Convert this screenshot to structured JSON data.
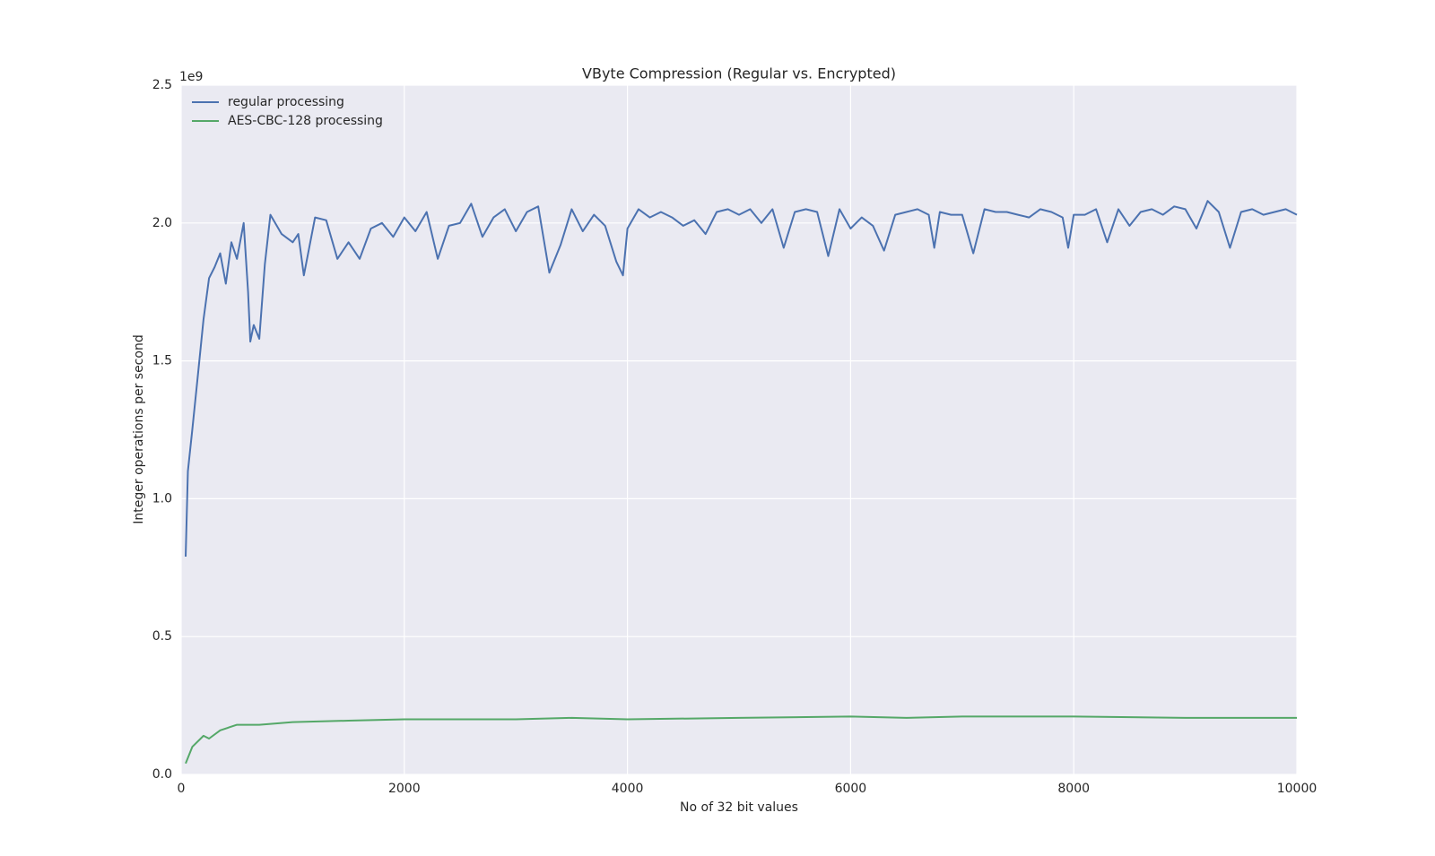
{
  "chart_data": {
    "type": "line",
    "title": "VByte Compression (Regular vs. Encrypted)",
    "x_label": "No of 32 bit values",
    "y_label": "Integer operations per second",
    "y_offset_label": "1e9",
    "xlim": [
      0,
      10000
    ],
    "ylim": [
      0,
      2.5
    ],
    "xticks": [
      0,
      2000,
      4000,
      6000,
      8000,
      10000
    ],
    "yticks": [
      {
        "value": 0,
        "label": "0.0"
      },
      0.5,
      {
        "value": 1,
        "label": "1.0"
      },
      1.5,
      {
        "value": 2,
        "label": "2.0"
      },
      2.5
    ],
    "grid": true,
    "legend": "upper left",
    "series": [
      {
        "name": "regular processing",
        "color": "#4c72b0",
        "x": [
          40,
          60,
          100,
          150,
          200,
          250,
          300,
          350,
          400,
          450,
          500,
          560,
          600,
          620,
          650,
          700,
          750,
          800,
          900,
          1000,
          1050,
          1100,
          1200,
          1300,
          1400,
          1500,
          1600,
          1700,
          1800,
          1900,
          2000,
          2100,
          2200,
          2300,
          2400,
          2500,
          2600,
          2700,
          2800,
          2900,
          3000,
          3100,
          3200,
          3300,
          3400,
          3500,
          3600,
          3700,
          3800,
          3900,
          3960,
          4000,
          4100,
          4200,
          4300,
          4400,
          4500,
          4600,
          4700,
          4800,
          4900,
          5000,
          5100,
          5200,
          5300,
          5400,
          5500,
          5600,
          5700,
          5800,
          5900,
          6000,
          6100,
          6200,
          6300,
          6400,
          6500,
          6600,
          6700,
          6750,
          6800,
          6900,
          7000,
          7100,
          7200,
          7300,
          7400,
          7500,
          7600,
          7700,
          7800,
          7900,
          7950,
          8000,
          8100,
          8200,
          8300,
          8400,
          8500,
          8600,
          8700,
          8800,
          8900,
          9000,
          9100,
          9200,
          9300,
          9400,
          9500,
          9600,
          9700,
          9800,
          9900,
          10000
        ],
        "values": [
          0.79,
          1.1,
          1.25,
          1.45,
          1.65,
          1.8,
          1.84,
          1.89,
          1.78,
          1.93,
          1.87,
          2.0,
          1.75,
          1.57,
          1.63,
          1.58,
          1.85,
          2.03,
          1.96,
          1.93,
          1.96,
          1.81,
          2.02,
          2.01,
          1.87,
          1.93,
          1.87,
          1.98,
          2.0,
          1.95,
          2.02,
          1.97,
          2.04,
          1.87,
          1.99,
          2.0,
          2.07,
          1.95,
          2.02,
          2.05,
          1.97,
          2.04,
          2.06,
          1.82,
          1.92,
          2.05,
          1.97,
          2.03,
          1.99,
          1.86,
          1.81,
          1.98,
          2.05,
          2.02,
          2.04,
          2.02,
          1.99,
          2.01,
          1.96,
          2.04,
          2.05,
          2.03,
          2.05,
          2.0,
          2.05,
          1.91,
          2.04,
          2.05,
          2.04,
          1.88,
          2.05,
          1.98,
          2.02,
          1.99,
          1.9,
          2.03,
          2.04,
          2.05,
          2.03,
          1.91,
          2.04,
          2.03,
          2.03,
          1.89,
          2.05,
          2.04,
          2.04,
          2.03,
          2.02,
          2.05,
          2.04,
          2.02,
          1.91,
          2.03,
          2.03,
          2.05,
          1.93,
          2.05,
          1.99,
          2.04,
          2.05,
          2.03,
          2.06,
          2.05,
          1.98,
          2.08,
          2.04,
          1.91,
          2.04,
          2.05,
          2.03,
          2.04,
          2.05,
          2.03
        ]
      },
      {
        "name": "AES-CBC-128 processing",
        "color": "#55a868",
        "x": [
          40,
          100,
          200,
          250,
          350,
          500,
          700,
          1000,
          1500,
          2000,
          3000,
          3500,
          4000,
          5000,
          6000,
          6500,
          7000,
          8000,
          9000,
          10000
        ],
        "values": [
          0.04,
          0.1,
          0.14,
          0.13,
          0.16,
          0.18,
          0.18,
          0.19,
          0.195,
          0.2,
          0.2,
          0.205,
          0.2,
          0.205,
          0.21,
          0.205,
          0.21,
          0.21,
          0.205,
          0.205
        ]
      }
    ]
  }
}
